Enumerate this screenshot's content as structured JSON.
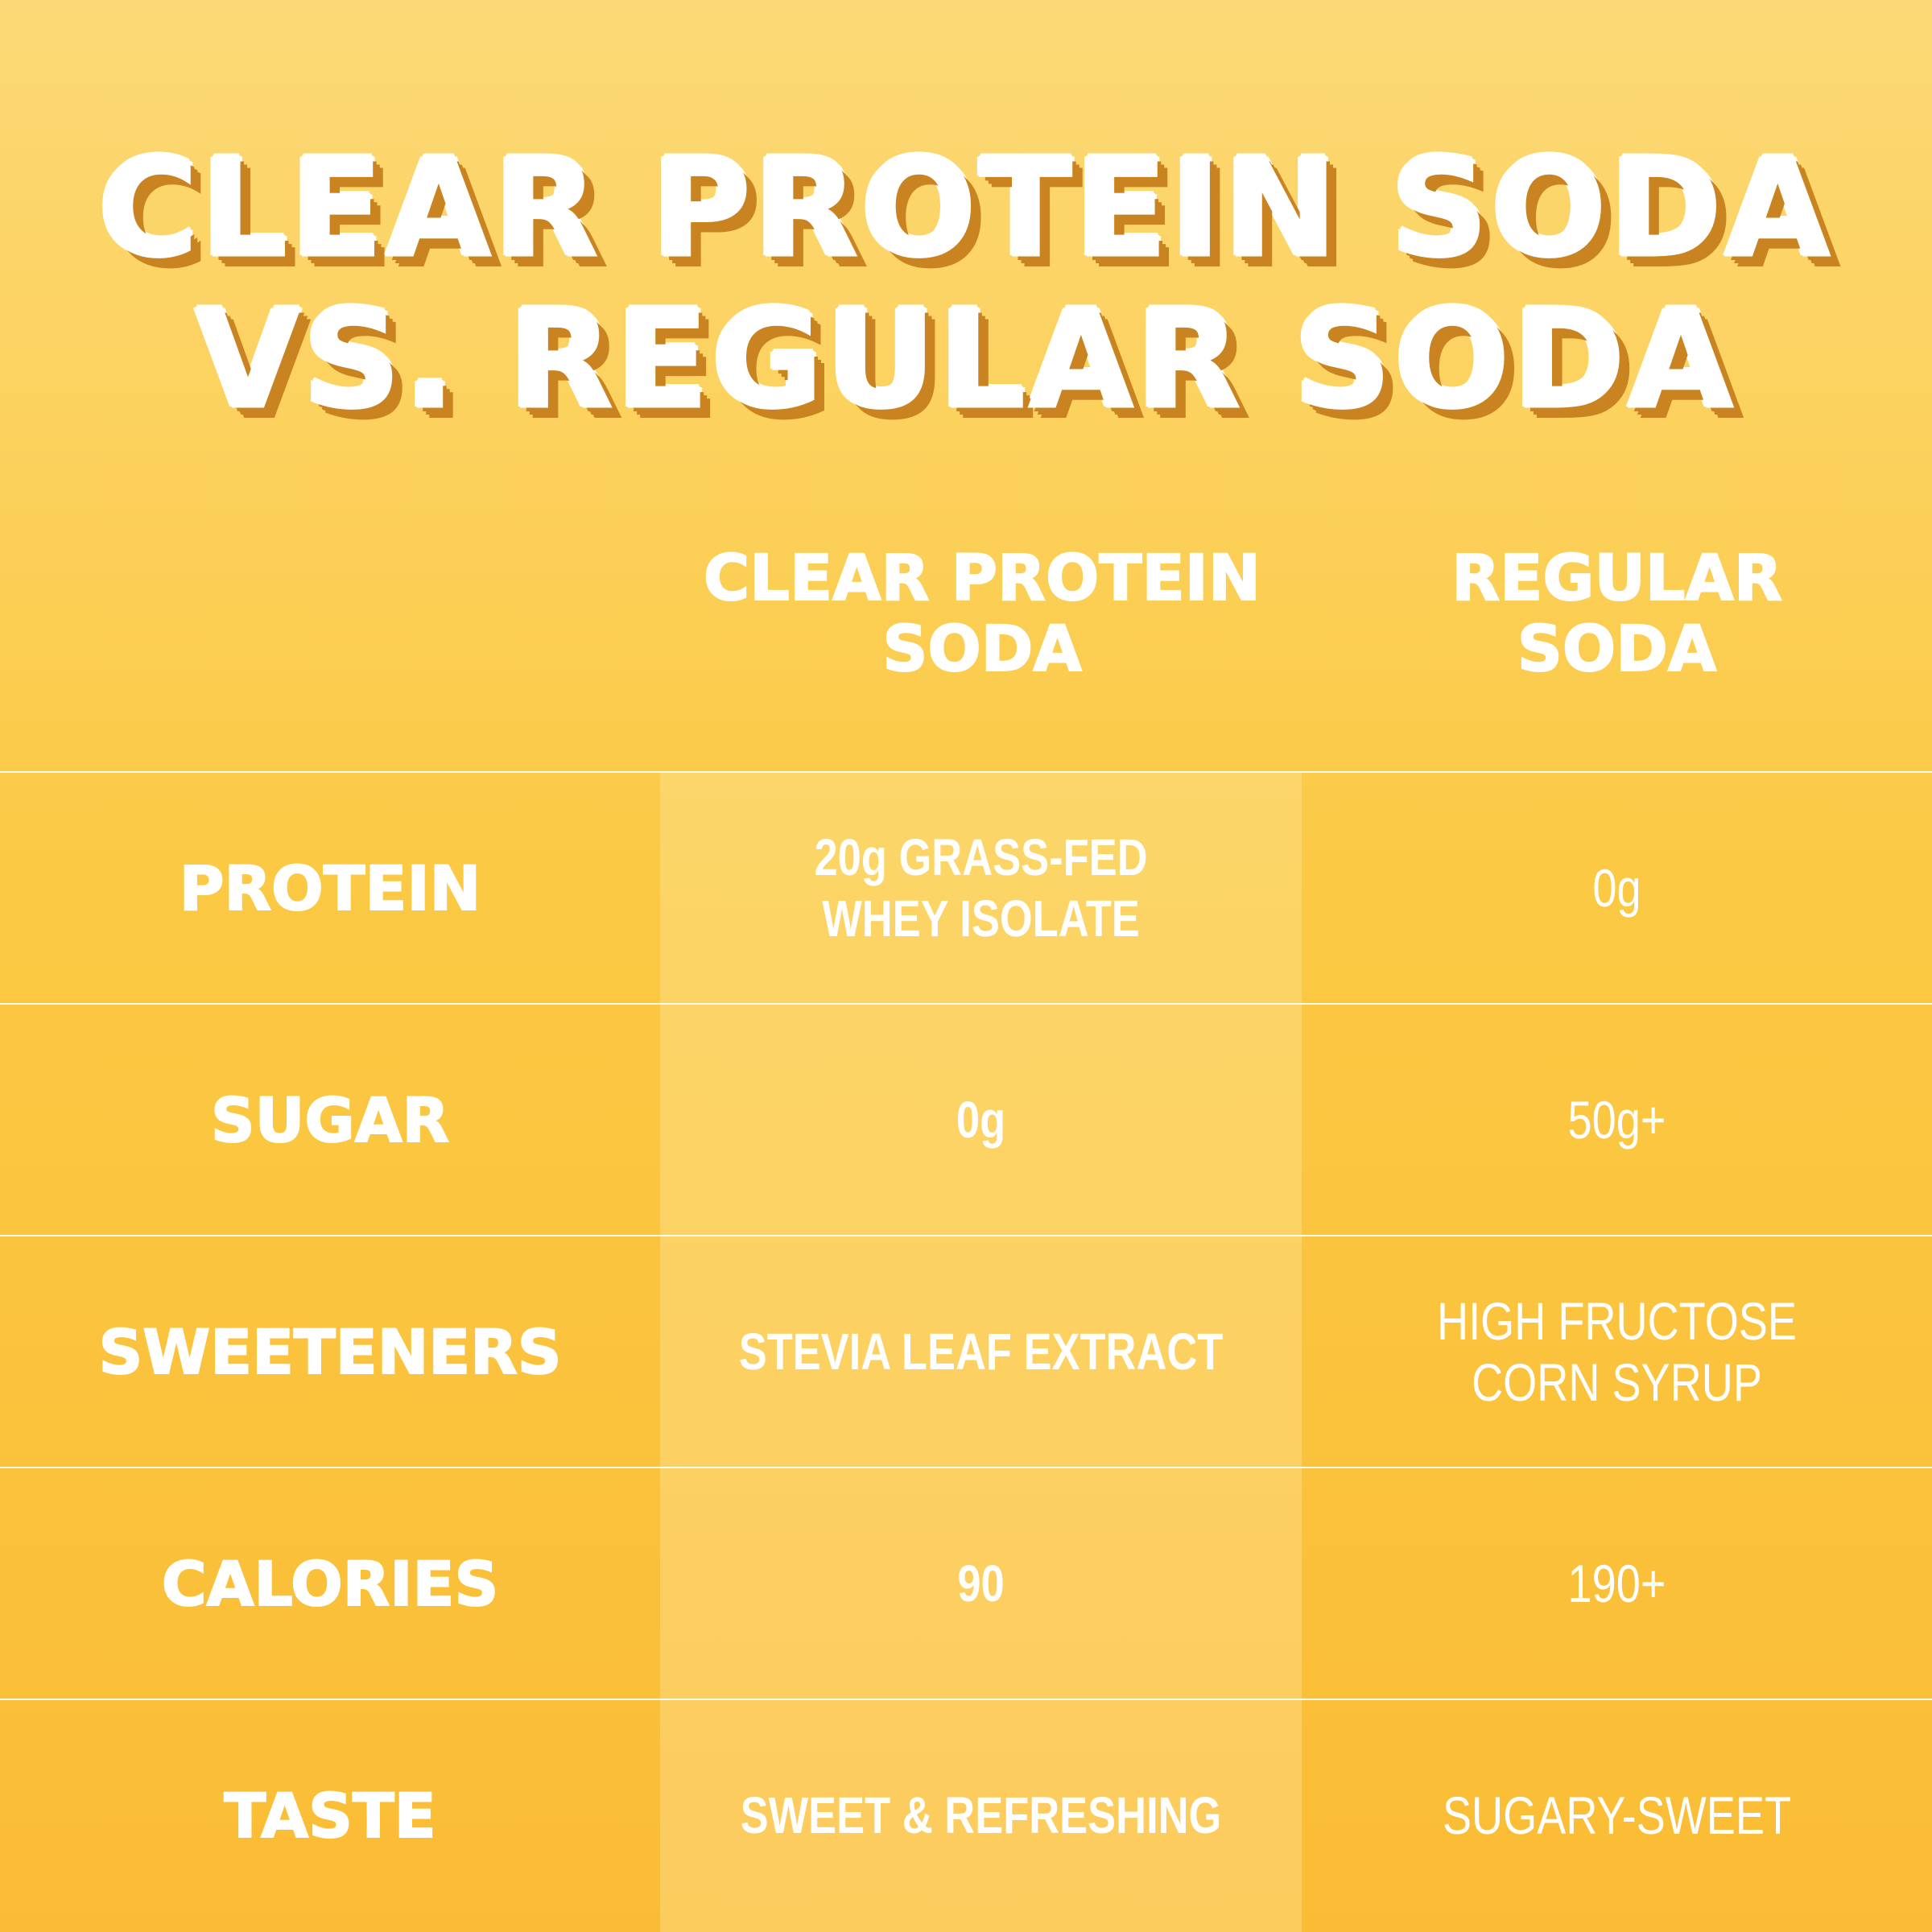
{
  "title": {
    "line1": "CLEAR PROTEIN SODA",
    "line2": "VS. REGULAR SODA"
  },
  "columns": {
    "clear": [
      "CLEAR PROTEIN",
      "SODA"
    ],
    "regular": [
      "REGULAR",
      "SODA"
    ]
  },
  "rows": [
    {
      "label": "PROTEIN",
      "clear": [
        "20g GRASS-FED",
        "WHEY ISOLATE"
      ],
      "regular": [
        "0g"
      ]
    },
    {
      "label": "SUGAR",
      "clear": [
        "0g"
      ],
      "regular": [
        "50g+"
      ]
    },
    {
      "label": "SWEETENERS",
      "clear": [
        "STEVIA LEAF EXTRACT"
      ],
      "regular": [
        "HIGH FRUCTOSE",
        "CORN SYRUP"
      ]
    },
    {
      "label": "CALORIES",
      "clear": [
        "90"
      ],
      "regular": [
        "190+"
      ]
    },
    {
      "label": "TASTE",
      "clear": [
        "SWEET & REFRESHING"
      ],
      "regular": [
        "SUGARY-SWEET"
      ]
    }
  ],
  "colors": {
    "background_top": "#fcd976",
    "background_bottom": "#fbbc35",
    "title_shadow": "#c98421",
    "text": "#ffffff"
  }
}
